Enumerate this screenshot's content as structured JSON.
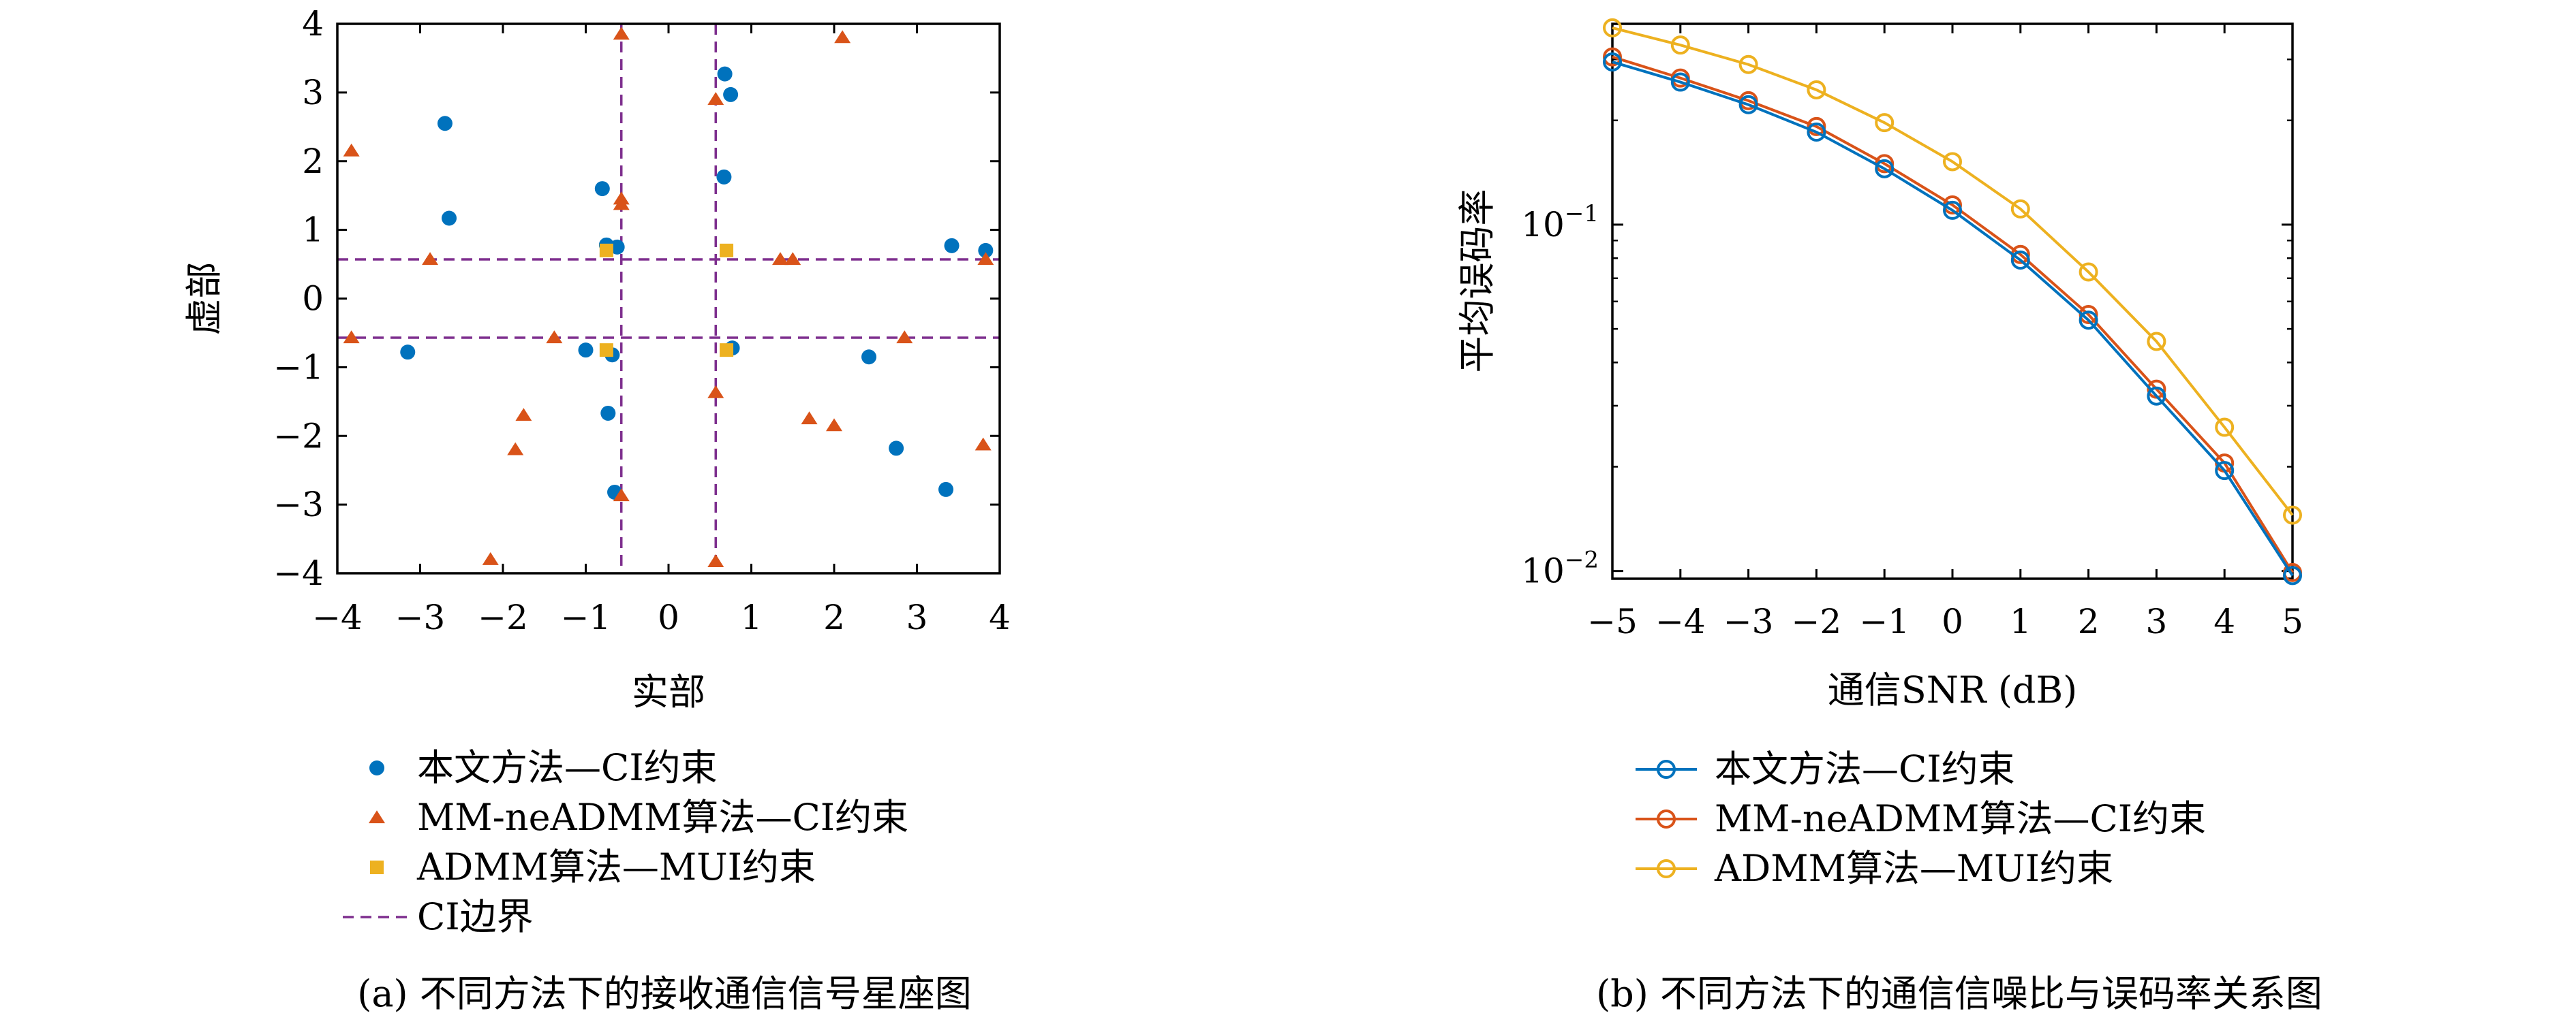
{
  "captions": {
    "a": "(a) 不同方法下的接收通信信号星座图",
    "b": "(b) 不同方法下的通信信噪比与误码率关系图"
  },
  "colors": {
    "blue": "#0072BD",
    "orange": "#D95319",
    "yellow": "#EDB120",
    "purple": "#7E2F8E"
  },
  "chart_data": [
    {
      "type": "scatter",
      "xlabel": "实部",
      "ylabel": "虚部",
      "xlim": [
        -4,
        4
      ],
      "ylim": [
        -4,
        4
      ],
      "xticks": [
        "−4",
        "−3",
        "−2",
        "−1",
        "0",
        "1",
        "2",
        "3",
        "4"
      ],
      "yticks": [
        "4",
        "3",
        "2",
        "1",
        "0",
        "−1",
        "−2",
        "−3",
        "−4"
      ],
      "grid": false,
      "legend_position": "below",
      "legend": [
        {
          "label": "本文方法—CI约束",
          "marker": "circle",
          "color": "blue"
        },
        {
          "label": "MM-neADMM算法—CI约束",
          "marker": "triangle",
          "color": "orange"
        },
        {
          "label": "ADMM算法—MUI约束",
          "marker": "square",
          "color": "yellow"
        },
        {
          "label": "CI边界",
          "marker": "dashed",
          "color": "purple"
        }
      ],
      "ci_boundary": 0.57,
      "series": [
        {
          "name": "本文方法—CI约束",
          "marker": "circle",
          "color": "blue",
          "points": [
            [
              -2.7,
              2.55
            ],
            [
              -2.65,
              1.17
            ],
            [
              -0.8,
              1.6
            ],
            [
              -0.75,
              0.78
            ],
            [
              -0.62,
              0.75
            ],
            [
              0.68,
              3.27
            ],
            [
              0.75,
              2.97
            ],
            [
              0.67,
              1.77
            ],
            [
              3.42,
              0.77
            ],
            [
              3.83,
              0.7
            ],
            [
              -3.15,
              -0.78
            ],
            [
              -1.0,
              -0.75
            ],
            [
              -0.68,
              -0.82
            ],
            [
              -0.73,
              -1.67
            ],
            [
              -0.65,
              -2.82
            ],
            [
              0.77,
              -0.72
            ],
            [
              2.42,
              -0.85
            ],
            [
              2.75,
              -2.18
            ],
            [
              3.35,
              -2.78
            ]
          ]
        },
        {
          "name": "MM-neADMM算法—CI约束",
          "marker": "triangle",
          "color": "orange",
          "points": [
            [
              -3.83,
              2.15
            ],
            [
              -2.88,
              0.57
            ],
            [
              -0.57,
              3.85
            ],
            [
              -0.57,
              1.45
            ],
            [
              -0.57,
              1.37
            ],
            [
              0.57,
              2.9
            ],
            [
              2.1,
              3.8
            ],
            [
              1.35,
              0.57
            ],
            [
              1.5,
              0.57
            ],
            [
              3.83,
              0.57
            ],
            [
              -3.83,
              -0.57
            ],
            [
              -1.38,
              -0.57
            ],
            [
              -1.75,
              -1.7
            ],
            [
              -1.85,
              -2.2
            ],
            [
              -2.15,
              -3.8
            ],
            [
              -0.57,
              -2.87
            ],
            [
              0.57,
              -1.37
            ],
            [
              0.57,
              -3.83
            ],
            [
              1.7,
              -1.75
            ],
            [
              2.0,
              -1.85
            ],
            [
              2.85,
              -0.57
            ],
            [
              3.8,
              -2.13
            ]
          ]
        },
        {
          "name": "ADMM算法—MUI约束",
          "marker": "square",
          "color": "yellow",
          "points": [
            [
              -0.75,
              0.7
            ],
            [
              0.7,
              0.7
            ],
            [
              -0.75,
              -0.75
            ],
            [
              0.7,
              -0.75
            ]
          ]
        }
      ]
    },
    {
      "type": "line",
      "xlabel": "通信SNR (dB)",
      "ylabel": "平均误码率",
      "yscale": "log",
      "xlim": [
        -5,
        5
      ],
      "ylim": [
        0.0095,
        0.38
      ],
      "x": [
        -5,
        -4,
        -3,
        -2,
        -1,
        0,
        1,
        2,
        3,
        4,
        5
      ],
      "xticks": [
        "−5",
        "−4",
        "−3",
        "−2",
        "−1",
        "0",
        "1",
        "2",
        "3",
        "4",
        "5"
      ],
      "yticks": [
        {
          "base": "10",
          "exp": "−1",
          "value": 0.1
        },
        {
          "base": "10",
          "exp": "−2",
          "value": 0.01
        }
      ],
      "grid": false,
      "legend_position": "below",
      "series": [
        {
          "name": "本文方法—CI约束",
          "color": "blue",
          "values": [
            0.295,
            0.258,
            0.222,
            0.185,
            0.145,
            0.11,
            0.079,
            0.053,
            0.032,
            0.0195,
            0.0097
          ]
        },
        {
          "name": "MM-neADMM算法—CI约束",
          "color": "orange",
          "values": [
            0.305,
            0.265,
            0.228,
            0.192,
            0.15,
            0.114,
            0.082,
            0.055,
            0.0335,
            0.0205,
            0.0099
          ]
        },
        {
          "name": "ADMM算法—MUI约束",
          "color": "yellow",
          "values": [
            0.37,
            0.33,
            0.29,
            0.245,
            0.197,
            0.152,
            0.111,
            0.073,
            0.046,
            0.026,
            0.0145
          ]
        }
      ]
    }
  ]
}
